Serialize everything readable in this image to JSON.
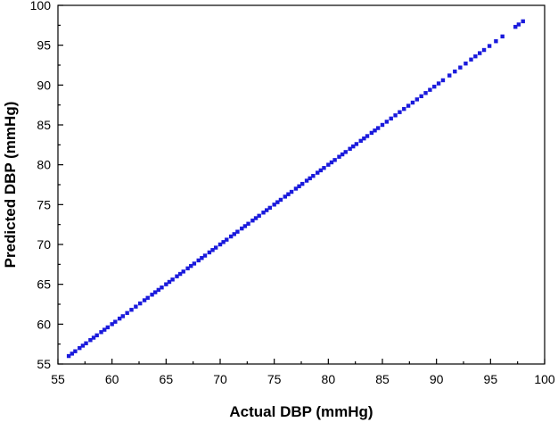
{
  "chart_data": {
    "type": "scatter",
    "title": "",
    "xlabel": "Actual DBP (mmHg)",
    "ylabel": "Predicted DBP (mmHg)",
    "xlim": [
      55,
      100
    ],
    "ylim": [
      55,
      100
    ],
    "xticks": [
      55,
      60,
      65,
      70,
      75,
      80,
      85,
      90,
      95,
      100
    ],
    "yticks": [
      55,
      60,
      65,
      70,
      75,
      80,
      85,
      90,
      95,
      100
    ],
    "grid": false,
    "legend": "none",
    "marker_color": "#1a1adc",
    "series": [
      {
        "x": [
          56.0,
          56.3,
          56.6,
          57.0,
          57.3,
          57.6,
          58.0,
          58.3,
          58.6,
          59.0,
          59.3,
          59.6,
          60.0,
          60.3,
          60.7,
          61.0,
          61.4,
          61.8,
          62.2,
          62.6,
          63.0,
          63.3,
          63.7,
          64.0,
          64.3,
          64.6,
          65.0,
          65.3,
          65.6,
          66.0,
          66.3,
          66.6,
          67.0,
          67.3,
          67.6,
          68.0,
          68.3,
          68.6,
          69.0,
          69.3,
          69.6,
          70.0,
          70.3,
          70.6,
          71.0,
          71.3,
          71.6,
          72.0,
          72.3,
          72.6,
          73.0,
          73.3,
          73.6,
          74.0,
          74.3,
          74.6,
          75.0,
          75.3,
          75.6,
          76.0,
          76.3,
          76.6,
          77.0,
          77.3,
          77.6,
          78.0,
          78.3,
          78.6,
          79.0,
          79.3,
          79.6,
          80.0,
          80.3,
          80.6,
          81.0,
          81.3,
          81.6,
          82.0,
          82.3,
          82.6,
          83.0,
          83.3,
          83.6,
          84.0,
          84.3,
          84.6,
          85.0,
          85.4,
          85.8,
          86.2,
          86.6,
          87.0,
          87.4,
          87.8,
          88.2,
          88.6,
          89.0,
          89.4,
          89.8,
          90.2,
          90.6,
          91.2,
          91.7,
          92.2,
          92.7,
          93.2,
          93.6,
          94.0,
          94.4,
          94.9,
          95.5,
          96.1,
          97.3,
          97.6,
          98.0
        ],
        "y": [
          56.0,
          56.3,
          56.6,
          57.0,
          57.3,
          57.6,
          58.0,
          58.3,
          58.6,
          59.0,
          59.3,
          59.6,
          60.0,
          60.3,
          60.7,
          61.0,
          61.4,
          61.8,
          62.2,
          62.6,
          63.0,
          63.3,
          63.7,
          64.0,
          64.3,
          64.6,
          65.0,
          65.3,
          65.6,
          66.0,
          66.3,
          66.6,
          67.0,
          67.3,
          67.6,
          68.0,
          68.3,
          68.6,
          69.0,
          69.3,
          69.6,
          70.0,
          70.3,
          70.6,
          71.0,
          71.3,
          71.6,
          72.0,
          72.3,
          72.6,
          73.0,
          73.3,
          73.6,
          74.0,
          74.3,
          74.6,
          75.0,
          75.3,
          75.6,
          76.0,
          76.3,
          76.6,
          77.0,
          77.3,
          77.6,
          78.0,
          78.3,
          78.6,
          79.0,
          79.3,
          79.6,
          80.0,
          80.3,
          80.6,
          81.0,
          81.3,
          81.6,
          82.0,
          82.3,
          82.6,
          83.0,
          83.3,
          83.6,
          84.0,
          84.3,
          84.6,
          85.0,
          85.4,
          85.8,
          86.2,
          86.6,
          87.0,
          87.4,
          87.8,
          88.2,
          88.6,
          89.0,
          89.4,
          89.8,
          90.2,
          90.6,
          91.2,
          91.7,
          92.2,
          92.7,
          93.2,
          93.6,
          94.0,
          94.4,
          94.9,
          95.5,
          96.1,
          97.3,
          97.6,
          98.0
        ]
      }
    ]
  }
}
